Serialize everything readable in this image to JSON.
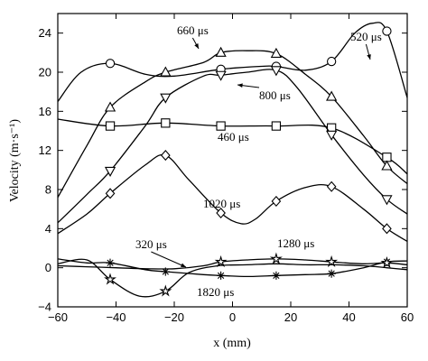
{
  "chart_data": {
    "type": "line",
    "xlabel": "x (mm)",
    "ylabel": "Velocity (m·s⁻¹)",
    "xlim": [
      -60,
      60
    ],
    "ylim": [
      -4,
      26
    ],
    "xticks": [
      -60,
      -40,
      -20,
      0,
      20,
      40,
      60
    ],
    "yticks": [
      -4,
      0,
      4,
      8,
      12,
      16,
      20,
      24
    ],
    "grid": false,
    "series": [
      {
        "name": "320 μs",
        "marker": "asterisk",
        "markers_x": [
          -42,
          -23,
          -4,
          15,
          34,
          53
        ],
        "curve": [
          [
            -60,
            0.9
          ],
          [
            -50,
            0.5
          ],
          [
            -42,
            0.5
          ],
          [
            -30,
            -0.2
          ],
          [
            -23,
            -0.4
          ],
          [
            -10,
            -0.7
          ],
          [
            -4,
            -0.8
          ],
          [
            5,
            -0.9
          ],
          [
            15,
            -0.8
          ],
          [
            25,
            -0.7
          ],
          [
            34,
            -0.6
          ],
          [
            45,
            0.0
          ],
          [
            53,
            0.6
          ],
          [
            60,
            0.7
          ]
        ]
      },
      {
        "name": "1280 μs",
        "marker": "star",
        "markers_x": [
          -4,
          15,
          34,
          53
        ],
        "curve": [
          [
            -60,
            0.2
          ],
          [
            -50,
            0.1
          ],
          [
            -40,
            0.0
          ],
          [
            -30,
            -0.1
          ],
          [
            -20,
            -0.1
          ],
          [
            -10,
            0.2
          ],
          [
            -4,
            0.6
          ],
          [
            5,
            0.8
          ],
          [
            15,
            0.9
          ],
          [
            25,
            0.8
          ],
          [
            34,
            0.6
          ],
          [
            45,
            0.4
          ],
          [
            53,
            0.5
          ],
          [
            60,
            0.3
          ]
        ]
      },
      {
        "name": "1820 μs",
        "marker": "star",
        "markers_x": [
          -42,
          -23
        ],
        "curve": [
          [
            -60,
            0.4
          ],
          [
            -50,
            0.8
          ],
          [
            -42,
            -1.2
          ],
          [
            -32,
            -2.9
          ],
          [
            -23,
            -2.4
          ],
          [
            -15,
            -0.5
          ],
          [
            -5,
            0.2
          ],
          [
            5,
            0.3
          ],
          [
            15,
            0.4
          ],
          [
            25,
            0.3
          ],
          [
            34,
            0.3
          ],
          [
            45,
            0.2
          ],
          [
            53,
            0.0
          ],
          [
            60,
            -0.2
          ]
        ]
      },
      {
        "name": "460 μs",
        "marker": "square",
        "markers_x": [
          -42,
          -23,
          -4,
          15,
          34,
          53
        ],
        "curve": [
          [
            -60,
            15.2
          ],
          [
            -42,
            14.5
          ],
          [
            -23,
            14.8
          ],
          [
            -4,
            14.5
          ],
          [
            15,
            14.5
          ],
          [
            34,
            14.3
          ],
          [
            53,
            11.3
          ],
          [
            60,
            9.6
          ]
        ]
      },
      {
        "name": "520 μs",
        "marker": "circle",
        "markers_x": [
          -42,
          -4,
          15,
          34,
          53
        ],
        "curve": [
          [
            -60,
            17.0
          ],
          [
            -52,
            20.0
          ],
          [
            -42,
            20.9
          ],
          [
            -30,
            19.8
          ],
          [
            -20,
            19.6
          ],
          [
            -4,
            20.3
          ],
          [
            10,
            20.6
          ],
          [
            15,
            20.6
          ],
          [
            25,
            20.2
          ],
          [
            34,
            21.1
          ],
          [
            42,
            24.0
          ],
          [
            48,
            25.0
          ],
          [
            53,
            24.2
          ],
          [
            60,
            17.4
          ]
        ]
      },
      {
        "name": "660 μs",
        "marker": "triangle-up",
        "markers_x": [
          -42,
          -23,
          -4,
          15,
          34,
          53
        ],
        "curve": [
          [
            -60,
            7.2
          ],
          [
            -50,
            12.5
          ],
          [
            -42,
            16.4
          ],
          [
            -30,
            19.0
          ],
          [
            -23,
            20.0
          ],
          [
            -10,
            21.0
          ],
          [
            -4,
            22.0
          ],
          [
            5,
            22.2
          ],
          [
            15,
            21.9
          ],
          [
            25,
            19.8
          ],
          [
            34,
            17.5
          ],
          [
            45,
            13.5
          ],
          [
            53,
            10.4
          ],
          [
            60,
            8.6
          ]
        ]
      },
      {
        "name": "800 μs",
        "marker": "triangle-down",
        "markers_x": [
          -42,
          -23,
          -4,
          15,
          34,
          53
        ],
        "curve": [
          [
            -60,
            4.6
          ],
          [
            -50,
            7.5
          ],
          [
            -42,
            9.9
          ],
          [
            -30,
            14.5
          ],
          [
            -23,
            17.4
          ],
          [
            -10,
            19.6
          ],
          [
            -4,
            19.7
          ],
          [
            5,
            20.0
          ],
          [
            15,
            20.2
          ],
          [
            22,
            18.5
          ],
          [
            34,
            13.6
          ],
          [
            45,
            9.5
          ],
          [
            53,
            7.0
          ],
          [
            60,
            5.5
          ]
        ]
      },
      {
        "name": "1020 μs",
        "marker": "diamond",
        "markers_x": [
          -42,
          -23,
          -4,
          15,
          34,
          53
        ],
        "curve": [
          [
            -60,
            3.5
          ],
          [
            -50,
            5.5
          ],
          [
            -42,
            7.6
          ],
          [
            -30,
            10.5
          ],
          [
            -23,
            11.5
          ],
          [
            -15,
            9.0
          ],
          [
            -4,
            5.6
          ],
          [
            3,
            4.5
          ],
          [
            8,
            5.0
          ],
          [
            15,
            6.8
          ],
          [
            25,
            8.2
          ],
          [
            34,
            8.3
          ],
          [
            45,
            6.0
          ],
          [
            53,
            4.0
          ],
          [
            60,
            2.7
          ]
        ]
      }
    ],
    "annotations": [
      {
        "text": "660 μs",
        "series": "660 μs"
      },
      {
        "text": "520 μs",
        "series": "520 μs"
      },
      {
        "text": "800 μs",
        "series": "800 μs"
      },
      {
        "text": "460 μs",
        "series": "460 μs"
      },
      {
        "text": "1020 μs",
        "series": "1020 μs"
      },
      {
        "text": "320 μs",
        "series": "320 μs"
      },
      {
        "text": "1280 μs",
        "series": "1280 μs"
      },
      {
        "text": "1820 μs",
        "series": "1820 μs"
      }
    ]
  }
}
